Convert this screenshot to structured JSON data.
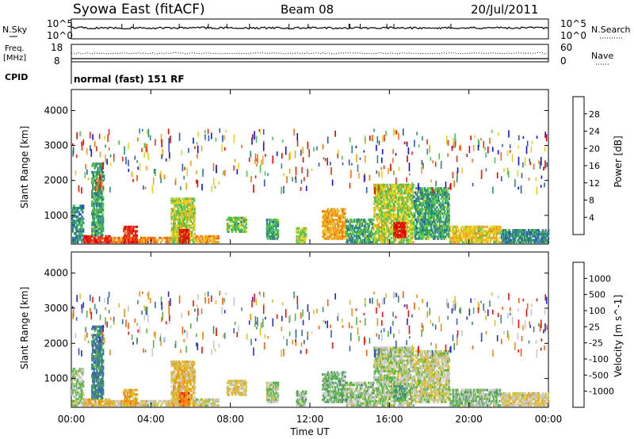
{
  "header": {
    "station": "Syowa East (fitACF)",
    "beam": "Beam 08",
    "date": "20/Jul/2011"
  },
  "top_panel": {
    "left_label": "N.Sky",
    "right_label": "N.Search",
    "ticks": [
      "10^5",
      "10^0"
    ],
    "right_ticks": [
      "10^5",
      "10^0"
    ]
  },
  "freq_panel": {
    "left_label_1": "Freq.",
    "left_label_2": "[MHz]",
    "right_label": "Nave",
    "left_ticks": [
      "18",
      "8"
    ],
    "right_ticks": [
      "60",
      "0"
    ]
  },
  "cpid": {
    "label": "CPID",
    "mode": "normal (fast) 151 RF"
  },
  "time_axis": {
    "ticks": [
      "00:00",
      "04:00",
      "08:00",
      "12:00",
      "16:00",
      "20:00",
      "00:00"
    ],
    "label": "Time UT"
  },
  "colors": {
    "power_scale": [
      "#1010e0",
      "#2a5ab8",
      "#2e8a78",
      "#4fc34f",
      "#e6d21e",
      "#f0a020",
      "#f07010",
      "#e43010",
      "#e60000"
    ],
    "velocity_scale": [
      "#2828c8",
      "#3c64b4",
      "#3c8c78",
      "#5ab448",
      "#c8c8c8",
      "#d8c030",
      "#f09010",
      "#f06010",
      "#e61010"
    ]
  },
  "chart_data": [
    {
      "type": "heatmap",
      "title": "",
      "xlabel": "Time UT",
      "ylabel": "Slant Range [km]",
      "xlim": [
        0,
        24
      ],
      "ylim": [
        180,
        4600
      ],
      "yticks": [
        "4000",
        "3000",
        "2000",
        "1000"
      ],
      "colorbar": {
        "label": "Power [dB]",
        "ticks": [
          "28",
          "24",
          "20",
          "16",
          "12",
          "8",
          "4"
        ],
        "range": [
          0,
          30
        ]
      },
      "echo_regions": [
        {
          "t_start": 0.0,
          "t_end": 0.6,
          "r_low": 200,
          "r_high": 1300,
          "level": 8
        },
        {
          "t_start": 0.6,
          "t_end": 2.0,
          "r_low": 200,
          "r_high": 420,
          "level": 26
        },
        {
          "t_start": 1.0,
          "t_end": 1.6,
          "r_low": 400,
          "r_high": 2500,
          "level": 10
        },
        {
          "t_start": 2.0,
          "t_end": 5.0,
          "r_low": 200,
          "r_high": 380,
          "level": 20
        },
        {
          "t_start": 2.6,
          "t_end": 3.3,
          "r_low": 200,
          "r_high": 700,
          "level": 26
        },
        {
          "t_start": 5.0,
          "t_end": 6.2,
          "r_low": 200,
          "r_high": 1500,
          "level": 14
        },
        {
          "t_start": 5.4,
          "t_end": 5.9,
          "r_low": 200,
          "r_high": 600,
          "level": 27
        },
        {
          "t_start": 6.2,
          "t_end": 7.4,
          "r_low": 200,
          "r_high": 420,
          "level": 18
        },
        {
          "t_start": 7.8,
          "t_end": 8.8,
          "r_low": 500,
          "r_high": 950,
          "level": 12
        },
        {
          "t_start": 9.8,
          "t_end": 10.4,
          "r_low": 300,
          "r_high": 900,
          "level": 10
        },
        {
          "t_start": 11.3,
          "t_end": 11.8,
          "r_low": 200,
          "r_high": 650,
          "level": 14
        },
        {
          "t_start": 12.6,
          "t_end": 13.8,
          "r_low": 300,
          "r_high": 1200,
          "level": 18
        },
        {
          "t_start": 13.8,
          "t_end": 15.2,
          "r_low": 200,
          "r_high": 900,
          "level": 10
        },
        {
          "t_start": 15.2,
          "t_end": 17.2,
          "r_low": 200,
          "r_high": 1900,
          "level": 14
        },
        {
          "t_start": 16.2,
          "t_end": 16.8,
          "r_low": 350,
          "r_high": 800,
          "level": 27
        },
        {
          "t_start": 17.2,
          "t_end": 19.0,
          "r_low": 300,
          "r_high": 1800,
          "level": 10
        },
        {
          "t_start": 19.0,
          "t_end": 21.6,
          "r_low": 200,
          "r_high": 700,
          "level": 16
        },
        {
          "t_start": 21.6,
          "t_end": 24.0,
          "r_low": 200,
          "r_high": 600,
          "level": 8
        }
      ],
      "scattered_range": [
        1800,
        3500
      ]
    },
    {
      "type": "heatmap",
      "title": "",
      "xlabel": "Time UT",
      "ylabel": "Slant Range [km]",
      "xlim": [
        0,
        24
      ],
      "ylim": [
        180,
        4600
      ],
      "yticks": [
        "4000",
        "3000",
        "2000",
        "1000"
      ],
      "colorbar": {
        "label": "Velocity [m s^-1]",
        "ticks": [
          "1000",
          "500",
          "100",
          "25",
          "-25",
          "-100",
          "-500",
          "-1000"
        ],
        "range": [
          -1200,
          1200
        ]
      },
      "echo_regions": [
        {
          "t_start": 0.0,
          "t_end": 0.6,
          "r_low": 200,
          "r_high": 1300,
          "level": 100
        },
        {
          "t_start": 0.6,
          "t_end": 2.0,
          "r_low": 200,
          "r_high": 420,
          "level": -300
        },
        {
          "t_start": 1.0,
          "t_end": 1.6,
          "r_low": 400,
          "r_high": 2500,
          "level": 600
        },
        {
          "t_start": 2.0,
          "t_end": 5.0,
          "r_low": 200,
          "r_high": 380,
          "level": -150
        },
        {
          "t_start": 2.6,
          "t_end": 3.3,
          "r_low": 200,
          "r_high": 700,
          "level": -400
        },
        {
          "t_start": 5.0,
          "t_end": 6.2,
          "r_low": 200,
          "r_high": 1500,
          "level": -300
        },
        {
          "t_start": 5.4,
          "t_end": 5.9,
          "r_low": 200,
          "r_high": 600,
          "level": -700
        },
        {
          "t_start": 6.2,
          "t_end": 7.4,
          "r_low": 200,
          "r_high": 420,
          "level": -100
        },
        {
          "t_start": 7.8,
          "t_end": 8.8,
          "r_low": 500,
          "r_high": 950,
          "level": -200
        },
        {
          "t_start": 9.8,
          "t_end": 10.4,
          "r_low": 300,
          "r_high": 900,
          "level": 80
        },
        {
          "t_start": 11.3,
          "t_end": 11.8,
          "r_low": 200,
          "r_high": 650,
          "level": 150
        },
        {
          "t_start": 12.6,
          "t_end": 13.8,
          "r_low": 300,
          "r_high": 1200,
          "level": 200
        },
        {
          "t_start": 13.8,
          "t_end": 15.2,
          "r_low": 200,
          "r_high": 900,
          "level": 120
        },
        {
          "t_start": 15.2,
          "t_end": 17.2,
          "r_low": 200,
          "r_high": 1900,
          "level": 60
        },
        {
          "t_start": 16.2,
          "t_end": 16.8,
          "r_low": 350,
          "r_high": 800,
          "level": 300
        },
        {
          "t_start": 17.2,
          "t_end": 19.0,
          "r_low": 300,
          "r_high": 1800,
          "level": -60
        },
        {
          "t_start": 19.0,
          "t_end": 21.6,
          "r_low": 200,
          "r_high": 700,
          "level": 150
        },
        {
          "t_start": 21.6,
          "t_end": 24.0,
          "r_low": 200,
          "r_high": 600,
          "level": -150
        }
      ],
      "scattered_range": [
        1800,
        3500
      ]
    }
  ]
}
